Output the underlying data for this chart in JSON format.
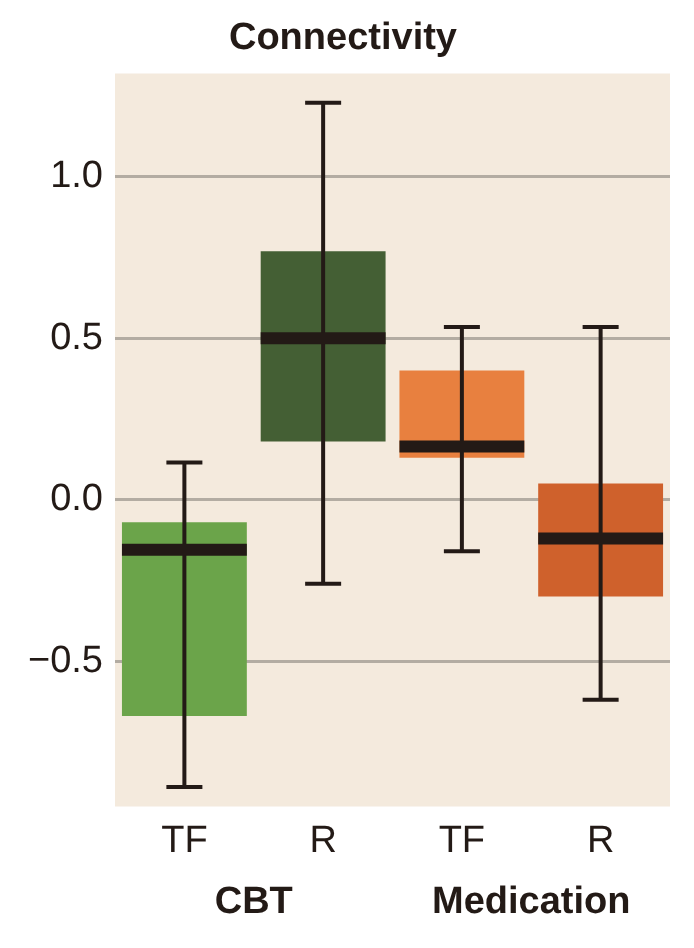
{
  "chart_data": {
    "type": "box",
    "title": "Connectivity",
    "categories": [
      "TF",
      "R",
      "TF",
      "R"
    ],
    "colors": [
      "#6ba44a",
      "#445f34",
      "#e8803f",
      "#cf612c"
    ],
    "boxes": [
      {
        "low": -0.89,
        "q1": -0.67,
        "median": -0.155,
        "q3": -0.07,
        "high": 0.115
      },
      {
        "low": -0.26,
        "q1": 0.18,
        "median": 0.5,
        "q3": 0.77,
        "high": 1.23
      },
      {
        "low": -0.16,
        "q1": 0.13,
        "median": 0.165,
        "q3": 0.4,
        "high": 0.535
      },
      {
        "low": -0.62,
        "q1": -0.3,
        "median": -0.12,
        "q3": 0.05,
        "high": 0.535
      }
    ],
    "annotations": [
      "CBT",
      "Medication"
    ],
    "ylim": [
      -0.95,
      1.32
    ],
    "yticks": [
      {
        "value": -0.5,
        "label": "−0.5"
      },
      {
        "value": 0,
        "label": "0.0"
      },
      0.5,
      {
        "value": 1,
        "label": "1.0"
      }
    ],
    "grid": "y"
  }
}
